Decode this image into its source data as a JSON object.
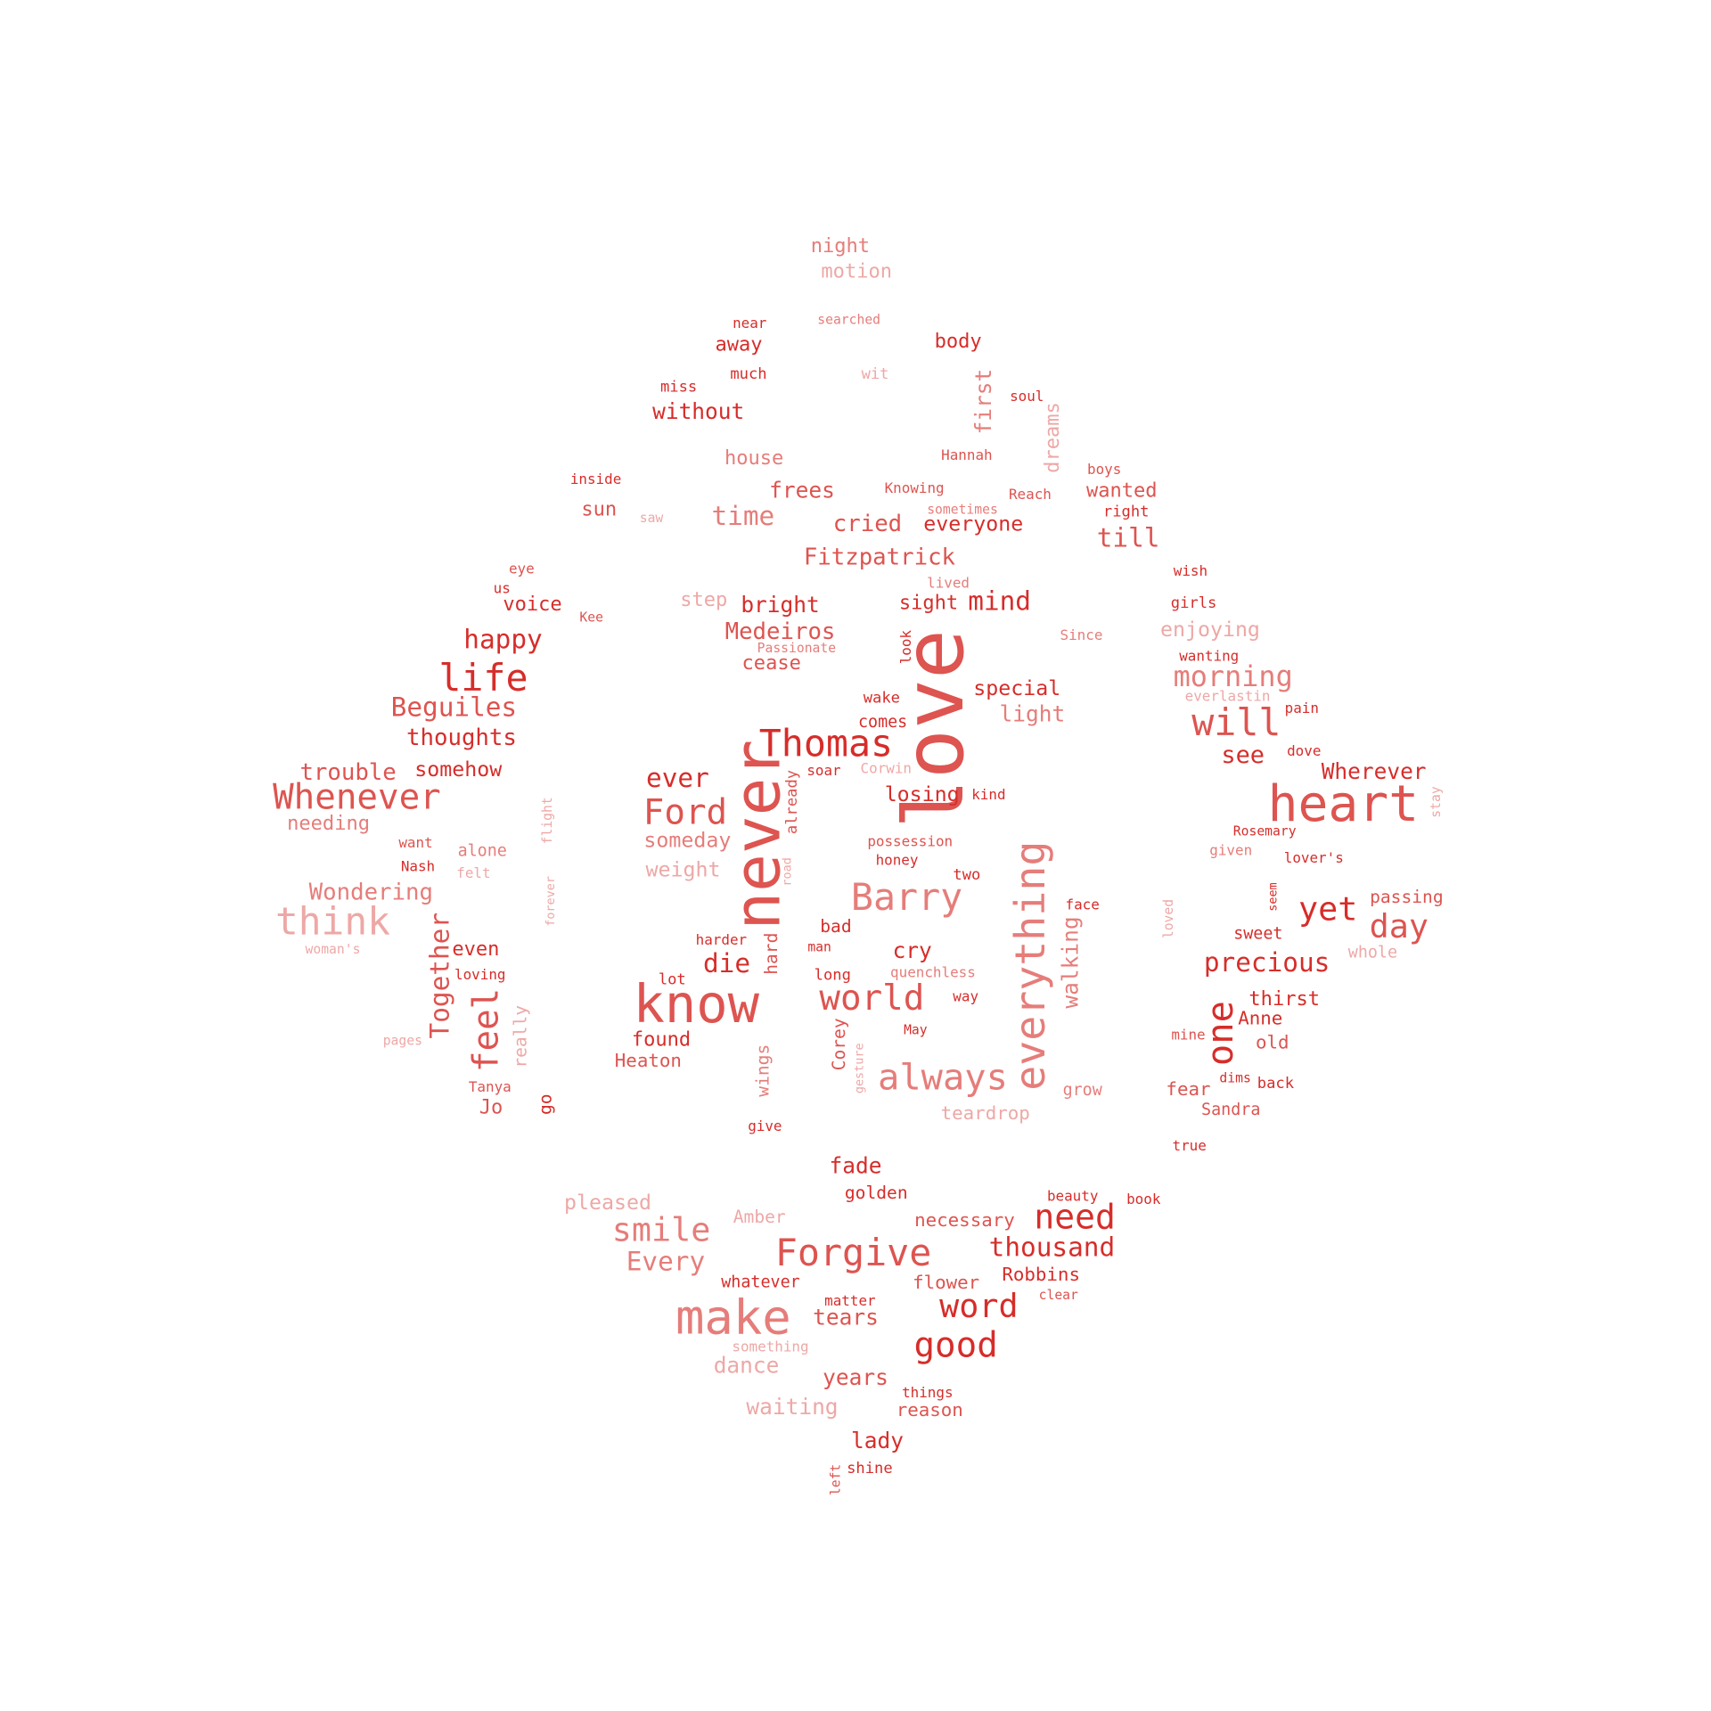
{
  "colors": [
    "#d62d2a",
    "#dd5450",
    "#e57d7a",
    "#eda8a6"
  ],
  "words": [
    {
      "text": "love",
      "c": 1
    },
    {
      "text": "never",
      "c": 1
    },
    {
      "text": "know",
      "c": 1
    },
    {
      "text": "heart",
      "c": 1
    },
    {
      "text": "make",
      "c": 2
    },
    {
      "text": "Thomas",
      "c": 0
    },
    {
      "text": "Forgive",
      "c": 1
    },
    {
      "text": "think",
      "c": 3
    },
    {
      "text": "Whenever",
      "c": 1
    },
    {
      "text": "Barry",
      "c": 2
    },
    {
      "text": "life",
      "c": 0
    },
    {
      "text": "Ford",
      "c": 1
    },
    {
      "text": "always",
      "c": 2
    },
    {
      "text": "world",
      "c": 1
    },
    {
      "text": "everything",
      "c": 2
    },
    {
      "text": "good",
      "c": 0
    },
    {
      "text": "will",
      "c": 1
    },
    {
      "text": "smile",
      "c": 2
    },
    {
      "text": "need",
      "c": 0
    },
    {
      "text": "word",
      "c": 0
    },
    {
      "text": "yet",
      "c": 0
    },
    {
      "text": "day",
      "c": 1
    },
    {
      "text": "feel",
      "c": 1
    },
    {
      "text": "one",
      "c": 0
    },
    {
      "text": "morning",
      "c": 2
    },
    {
      "text": "thousand",
      "c": 0
    },
    {
      "text": "precious",
      "c": 0
    },
    {
      "text": "happy",
      "c": 0
    },
    {
      "text": "Beguiles",
      "c": 1
    },
    {
      "text": "Together",
      "c": 1
    },
    {
      "text": "Every",
      "c": 2
    },
    {
      "text": "ever",
      "c": 0
    },
    {
      "text": "die",
      "c": 0
    },
    {
      "text": "Wondering",
      "c": 2
    },
    {
      "text": "Fitzpatrick",
      "c": 1
    },
    {
      "text": "time",
      "c": 2
    },
    {
      "text": "mind",
      "c": 0
    },
    {
      "text": "thoughts",
      "c": 0
    },
    {
      "text": "trouble",
      "c": 1
    },
    {
      "text": "Medeiros",
      "c": 1
    },
    {
      "text": "till",
      "c": 1
    },
    {
      "text": "see",
      "c": 0
    },
    {
      "text": "Wherever",
      "c": 0
    },
    {
      "text": "cried",
      "c": 1
    },
    {
      "text": "everyone",
      "c": 0
    },
    {
      "text": "someday",
      "c": 2
    },
    {
      "text": "weight",
      "c": 3
    },
    {
      "text": "fade",
      "c": 0
    },
    {
      "text": "dance",
      "c": 3
    },
    {
      "text": "tears",
      "c": 1
    },
    {
      "text": "without",
      "c": 0
    },
    {
      "text": "bright",
      "c": 0
    },
    {
      "text": "special",
      "c": 0
    },
    {
      "text": "light",
      "c": 2
    },
    {
      "text": "enjoying",
      "c": 3
    },
    {
      "text": "years",
      "c": 1
    },
    {
      "text": "lady",
      "c": 0
    },
    {
      "text": "cry",
      "c": 0
    },
    {
      "text": "waiting",
      "c": 3
    },
    {
      "text": "walking",
      "c": 2
    },
    {
      "text": "first",
      "c": 2
    },
    {
      "text": "somehow",
      "c": 0
    },
    {
      "text": "needing",
      "c": 2
    },
    {
      "text": "pleased",
      "c": 3
    },
    {
      "text": "frees",
      "c": 1
    },
    {
      "text": "house",
      "c": 2
    },
    {
      "text": "losing",
      "c": 0
    },
    {
      "text": "night",
      "c": 2
    },
    {
      "text": "motion",
      "c": 3
    },
    {
      "text": "away",
      "c": 0
    },
    {
      "text": "body",
      "c": 0
    },
    {
      "text": "sun",
      "c": 1
    },
    {
      "text": "voice",
      "c": 0
    },
    {
      "text": "step",
      "c": 3
    },
    {
      "text": "sight",
      "c": 0
    },
    {
      "text": "cease",
      "c": 1
    },
    {
      "text": "dreams",
      "c": 3
    },
    {
      "text": "wanted",
      "c": 1
    },
    {
      "text": "even",
      "c": 0
    },
    {
      "text": "found",
      "c": 0
    },
    {
      "text": "Heaton",
      "c": 1
    },
    {
      "text": "Jo",
      "c": 1
    },
    {
      "text": "teardrop",
      "c": 3
    },
    {
      "text": "golden",
      "c": 0
    },
    {
      "text": "necessary",
      "c": 1
    },
    {
      "text": "Amber",
      "c": 3
    },
    {
      "text": "flower",
      "c": 1
    },
    {
      "text": "Robbins",
      "c": 0
    },
    {
      "text": "whatever",
      "c": 0
    },
    {
      "text": "reason",
      "c": 1
    },
    {
      "text": "thirst",
      "c": 0
    },
    {
      "text": "Anne",
      "c": 0
    },
    {
      "text": "old",
      "c": 1
    },
    {
      "text": "fear",
      "c": 1
    },
    {
      "text": "sweet",
      "c": 0
    },
    {
      "text": "passing",
      "c": 1
    },
    {
      "text": "bad",
      "c": 0
    },
    {
      "text": "really",
      "c": 3
    },
    {
      "text": "wings",
      "c": 2
    },
    {
      "text": "Corey",
      "c": 1
    },
    {
      "text": "hard",
      "c": 1
    },
    {
      "text": "alone",
      "c": 2
    },
    {
      "text": "grow",
      "c": 2
    },
    {
      "text": "Sandra",
      "c": 1
    },
    {
      "text": "whole",
      "c": 3
    },
    {
      "text": "go",
      "c": 0
    },
    {
      "text": "comes",
      "c": 0
    },
    {
      "text": "wake",
      "c": 0
    },
    {
      "text": "already",
      "c": 1
    },
    {
      "text": "miss",
      "c": 0
    },
    {
      "text": "much",
      "c": 0
    },
    {
      "text": "near",
      "c": 0
    },
    {
      "text": "searched",
      "c": 2
    },
    {
      "text": "wit",
      "c": 3
    },
    {
      "text": "soul",
      "c": 0
    },
    {
      "text": "Hannah",
      "c": 1
    },
    {
      "text": "inside",
      "c": 0
    },
    {
      "text": "saw",
      "c": 3
    },
    {
      "text": "Knowing",
      "c": 1
    },
    {
      "text": "sometimes",
      "c": 2
    },
    {
      "text": "Reach",
      "c": 1
    },
    {
      "text": "boys",
      "c": 1
    },
    {
      "text": "right",
      "c": 0
    },
    {
      "text": "eye",
      "c": 1
    },
    {
      "text": "us",
      "c": 0
    },
    {
      "text": "Kee",
      "c": 1
    },
    {
      "text": "lived",
      "c": 2
    },
    {
      "text": "wish",
      "c": 0
    },
    {
      "text": "girls",
      "c": 0
    },
    {
      "text": "Passionate",
      "c": 2
    },
    {
      "text": "look",
      "c": 0
    },
    {
      "text": "Since",
      "c": 2
    },
    {
      "text": "wanting",
      "c": 0
    },
    {
      "text": "everlastin",
      "c": 3
    },
    {
      "text": "pain",
      "c": 0
    },
    {
      "text": "dove",
      "c": 0
    },
    {
      "text": "soar",
      "c": 0
    },
    {
      "text": "Corwin",
      "c": 3
    },
    {
      "text": "kind",
      "c": 0
    },
    {
      "text": "stay",
      "c": 3
    },
    {
      "text": "want",
      "c": 1
    },
    {
      "text": "Nash",
      "c": 0
    },
    {
      "text": "felt",
      "c": 3
    },
    {
      "text": "flight",
      "c": 3
    },
    {
      "text": "road",
      "c": 3
    },
    {
      "text": "possession",
      "c": 1
    },
    {
      "text": "honey",
      "c": 0
    },
    {
      "text": "two",
      "c": 0
    },
    {
      "text": "Rosemary",
      "c": 0
    },
    {
      "text": "given",
      "c": 2
    },
    {
      "text": "lover's",
      "c": 0
    },
    {
      "text": "forever",
      "c": 3
    },
    {
      "text": "harder",
      "c": 0
    },
    {
      "text": "man",
      "c": 0
    },
    {
      "text": "face",
      "c": 0
    },
    {
      "text": "seem",
      "c": 0
    },
    {
      "text": "loved",
      "c": 3
    },
    {
      "text": "woman's",
      "c": 3
    },
    {
      "text": "loving",
      "c": 0
    },
    {
      "text": "lot",
      "c": 0
    },
    {
      "text": "long",
      "c": 0
    },
    {
      "text": "quenchless",
      "c": 2
    },
    {
      "text": "way",
      "c": 0
    },
    {
      "text": "pages",
      "c": 3
    },
    {
      "text": "May",
      "c": 0
    },
    {
      "text": "gesture",
      "c": 3
    },
    {
      "text": "mine",
      "c": 1
    },
    {
      "text": "Tanya",
      "c": 1
    },
    {
      "text": "dims",
      "c": 0
    },
    {
      "text": "back",
      "c": 0
    },
    {
      "text": "give",
      "c": 0
    },
    {
      "text": "true",
      "c": 0
    },
    {
      "text": "beauty",
      "c": 0
    },
    {
      "text": "book",
      "c": 0
    },
    {
      "text": "matter",
      "c": 0
    },
    {
      "text": "clear",
      "c": 1
    },
    {
      "text": "something",
      "c": 3
    },
    {
      "text": "things",
      "c": 0
    },
    {
      "text": "shine",
      "c": 0
    },
    {
      "text": "left",
      "c": 1
    }
  ]
}
